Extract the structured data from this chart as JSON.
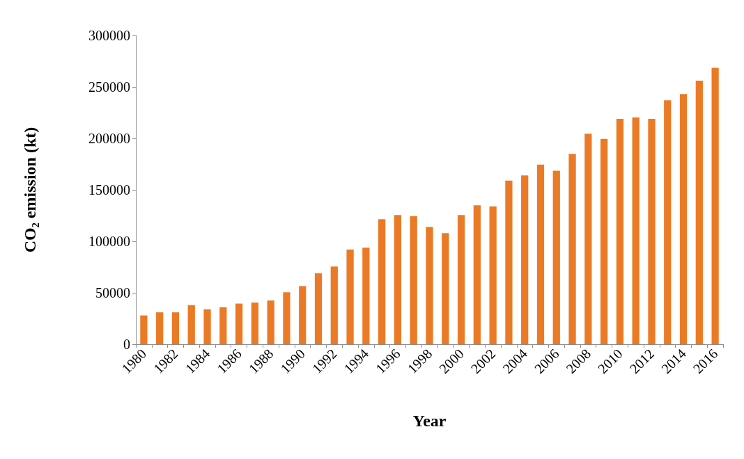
{
  "chart_data": {
    "type": "bar",
    "xlabel": "Year",
    "ylabel": "CO₂ emission (kt)",
    "categories": [
      "1980",
      null,
      "1982",
      null,
      "1984",
      null,
      "1986",
      null,
      "1988",
      null,
      "1990",
      null,
      "1992",
      null,
      "1994",
      null,
      "1996",
      null,
      "1998",
      null,
      "2000",
      null,
      "2002",
      null,
      "2004",
      null,
      "2006",
      null,
      "2008",
      null,
      "2010",
      null,
      "2012",
      null,
      "2014",
      null,
      "2016"
    ],
    "values": [
      28000,
      31000,
      31000,
      38000,
      34000,
      36000,
      39500,
      40500,
      42500,
      50500,
      56500,
      69000,
      75500,
      92000,
      94000,
      121500,
      125500,
      124500,
      114000,
      108000,
      125500,
      135000,
      134000,
      159000,
      164000,
      174500,
      168500,
      185000,
      204500,
      199500,
      219000,
      220500,
      219000,
      237000,
      243000,
      256000,
      268500
    ],
    "color": "#eb7a26",
    "ylim": [
      0,
      300000
    ],
    "yticks": [
      0,
      50000,
      100000,
      150000,
      200000,
      250000,
      300000
    ],
    "grid": false
  }
}
